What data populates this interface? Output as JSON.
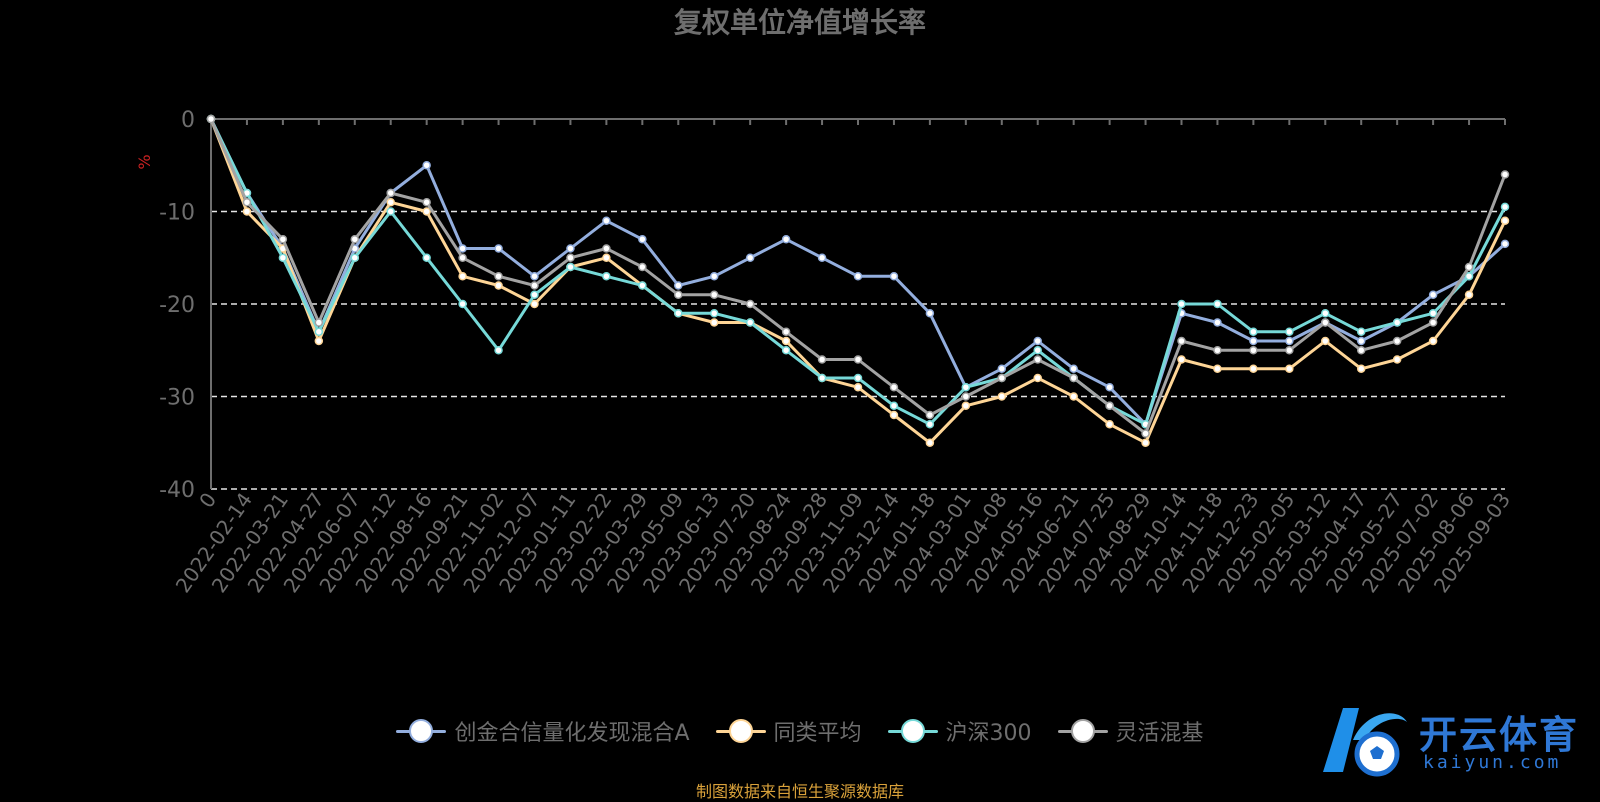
{
  "chart_data": {
    "type": "line",
    "title": "复权单位净值增长率",
    "ylabel": "%",
    "ylim": [
      -40,
      0
    ],
    "yticks": [
      "0",
      "-10",
      "-20",
      "-30",
      "-40"
    ],
    "grid": "dashed horizontal lines",
    "legend_position": "bottom-center",
    "x": [
      "0",
      "2022-02-14",
      "2022-03-21",
      "2022-04-27",
      "2022-06-07",
      "2022-07-12",
      "2022-08-16",
      "2022-09-21",
      "2022-11-02",
      "2022-12-07",
      "2023-01-11",
      "2023-02-22",
      "2023-03-29",
      "2023-05-09",
      "2023-06-13",
      "2023-07-20",
      "2023-08-24",
      "2023-09-28",
      "2023-11-09",
      "2023-12-14",
      "2024-01-18",
      "2024-03-01",
      "2024-04-08",
      "2024-05-16",
      "2024-06-21",
      "2024-07-25",
      "2024-08-29",
      "2024-10-14",
      "2024-11-18",
      "2024-12-23",
      "2025-02-05",
      "2025-03-12",
      "2025-04-17",
      "2025-05-27",
      "2025-07-02",
      "2025-08-06",
      "2025-09-03"
    ],
    "series": [
      {
        "name": "创金合信量化发现混合A",
        "color": "#93aede",
        "values": [
          0,
          -8,
          -14,
          -23,
          -14,
          -8,
          -5,
          -14,
          -14,
          -17,
          -14,
          -11,
          -13,
          -18,
          -17,
          -15,
          -13,
          -15,
          -17,
          -17,
          -21,
          -29,
          -27,
          -24,
          -27,
          -29,
          -33,
          -21,
          -22,
          -24,
          -24,
          -22,
          -24,
          -22,
          -19,
          -17,
          -13.5
        ]
      },
      {
        "name": "同类平均",
        "color": "#fed596",
        "values": [
          0,
          -10,
          -14,
          -24,
          -15,
          -9,
          -10,
          -17,
          -18,
          -20,
          -16,
          -15,
          -18,
          -21,
          -22,
          -22,
          -24,
          -28,
          -29,
          -32,
          -35,
          -31,
          -30,
          -28,
          -30,
          -33,
          -35,
          -26,
          -27,
          -27,
          -27,
          -24,
          -27,
          -26,
          -24,
          -19,
          -11
        ]
      },
      {
        "name": "沪深300",
        "color": "#76d9d8",
        "values": [
          0,
          -8,
          -15,
          -23,
          -15,
          -10,
          -15,
          -20,
          -25,
          -19,
          -16,
          -17,
          -18,
          -21,
          -21,
          -22,
          -25,
          -28,
          -28,
          -31,
          -33,
          -29,
          -28,
          -25,
          -28,
          -31,
          -33,
          -20,
          -20,
          -23,
          -23,
          -21,
          -23,
          -22,
          -21,
          -17,
          -9.5
        ]
      },
      {
        "name": "灵活混基",
        "color": "#a3a3a3",
        "values": [
          0,
          -9,
          -13,
          -22,
          -13,
          -8,
          -9,
          -15,
          -17,
          -18,
          -15,
          -14,
          -16,
          -19,
          -19,
          -20,
          -23,
          -26,
          -26,
          -29,
          -32,
          -30,
          -28,
          -26,
          -28,
          -31,
          -34,
          -24,
          -25,
          -25,
          -25,
          -22,
          -25,
          -24,
          -22,
          -16,
          -6
        ]
      }
    ]
  },
  "legend": {
    "items": [
      "创金合信量化发现混合A",
      "同类平均",
      "沪深300",
      "灵活混基"
    ]
  },
  "footer": {
    "source": "制图数据来自恒生聚源数据库"
  },
  "watermark": {
    "title": "开云体育",
    "subtitle": "kaiyun.com"
  }
}
